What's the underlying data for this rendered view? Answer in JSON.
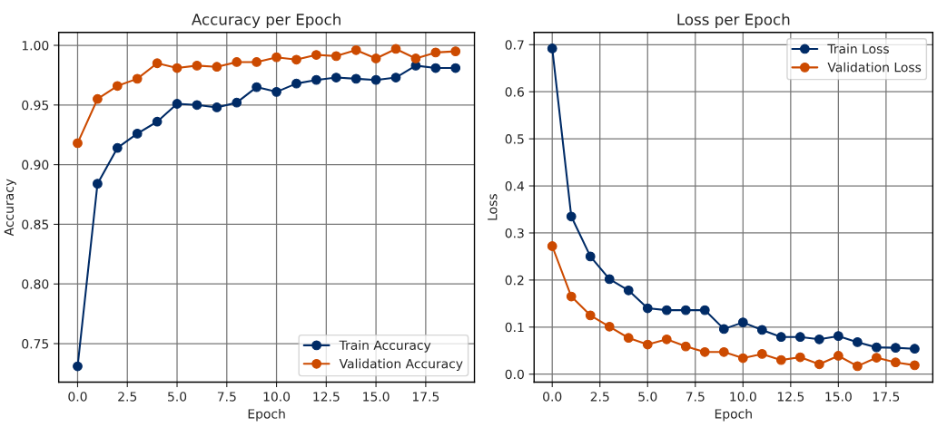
{
  "chart_data": [
    {
      "type": "line",
      "title": "Accuracy per Epoch",
      "xlabel": "Epoch",
      "ylabel": "Accuracy",
      "x": [
        0,
        1,
        2,
        3,
        4,
        5,
        6,
        7,
        8,
        9,
        10,
        11,
        12,
        13,
        14,
        15,
        16,
        17,
        18,
        19
      ],
      "series": [
        {
          "name": "Train Accuracy",
          "color": "#002b66",
          "values": [
            0.731,
            0.884,
            0.914,
            0.926,
            0.936,
            0.951,
            0.95,
            0.948,
            0.952,
            0.965,
            0.961,
            0.968,
            0.971,
            0.973,
            0.972,
            0.971,
            0.973,
            0.983,
            0.981,
            0.981
          ]
        },
        {
          "name": "Validation Accuracy",
          "color": "#cc4a00",
          "values": [
            0.918,
            0.955,
            0.966,
            0.972,
            0.985,
            0.981,
            0.983,
            0.982,
            0.986,
            0.986,
            0.99,
            0.988,
            0.992,
            0.991,
            0.996,
            0.989,
            0.997,
            0.989,
            0.994,
            0.995
          ]
        }
      ],
      "xlim": [
        -0.95,
        19.95
      ],
      "ylim": [
        0.7177,
        1.0108
      ],
      "xticks": [
        {
          "value": 0,
          "label": "0.0"
        },
        {
          "value": 2.5,
          "label": "2.5"
        },
        {
          "value": 5,
          "label": "5.0"
        },
        {
          "value": 7.5,
          "label": "7.5"
        },
        {
          "value": 10,
          "label": "10.0"
        },
        {
          "value": 12.5,
          "label": "12.5"
        },
        {
          "value": 15,
          "label": "15.0"
        },
        {
          "value": 17.5,
          "label": "17.5"
        }
      ],
      "yticks": [
        {
          "value": 0.75,
          "label": "0.75"
        },
        {
          "value": 0.8,
          "label": "0.80"
        },
        {
          "value": 0.85,
          "label": "0.85"
        },
        {
          "value": 0.9,
          "label": "0.90"
        },
        {
          "value": 0.95,
          "label": "0.95"
        },
        {
          "value": 1.0,
          "label": "1.00"
        }
      ],
      "grid": true,
      "legend": "bottom right",
      "marker": "circle",
      "line_style": "solid"
    },
    {
      "type": "line",
      "title": "Loss per Epoch",
      "xlabel": "Epoch",
      "ylabel": "Loss",
      "x": [
        0,
        1,
        2,
        3,
        4,
        5,
        6,
        7,
        8,
        9,
        10,
        11,
        12,
        13,
        14,
        15,
        16,
        17,
        18,
        19
      ],
      "series": [
        {
          "name": "Train Loss",
          "color": "#002b66",
          "values": [
            0.692,
            0.335,
            0.25,
            0.202,
            0.178,
            0.14,
            0.136,
            0.136,
            0.136,
            0.096,
            0.11,
            0.094,
            0.079,
            0.079,
            0.074,
            0.081,
            0.068,
            0.057,
            0.056,
            0.054
          ]
        },
        {
          "name": "Validation Loss",
          "color": "#cc4a00",
          "values": [
            0.272,
            0.165,
            0.125,
            0.101,
            0.077,
            0.063,
            0.074,
            0.059,
            0.047,
            0.047,
            0.034,
            0.043,
            0.03,
            0.036,
            0.021,
            0.039,
            0.017,
            0.035,
            0.025,
            0.019
          ]
        }
      ],
      "xlim": [
        -0.95,
        19.95
      ],
      "ylim": [
        -0.017,
        0.726
      ],
      "xticks": [
        {
          "value": 0,
          "label": "0.0"
        },
        {
          "value": 2.5,
          "label": "2.5"
        },
        {
          "value": 5,
          "label": "5.0"
        },
        {
          "value": 7.5,
          "label": "7.5"
        },
        {
          "value": 10,
          "label": "10.0"
        },
        {
          "value": 12.5,
          "label": "12.5"
        },
        {
          "value": 15,
          "label": "15.0"
        },
        {
          "value": 17.5,
          "label": "17.5"
        }
      ],
      "yticks": [
        {
          "value": 0,
          "label": "0.0"
        },
        {
          "value": 0.1,
          "label": "0.1"
        },
        {
          "value": 0.2,
          "label": "0.2"
        },
        {
          "value": 0.3,
          "label": "0.3"
        },
        {
          "value": 0.4,
          "label": "0.4"
        },
        {
          "value": 0.5,
          "label": "0.5"
        },
        {
          "value": 0.6,
          "label": "0.6"
        },
        {
          "value": 0.7,
          "label": "0.7"
        }
      ],
      "grid": true,
      "legend": "top right",
      "marker": "circle",
      "line_style": "solid"
    }
  ]
}
